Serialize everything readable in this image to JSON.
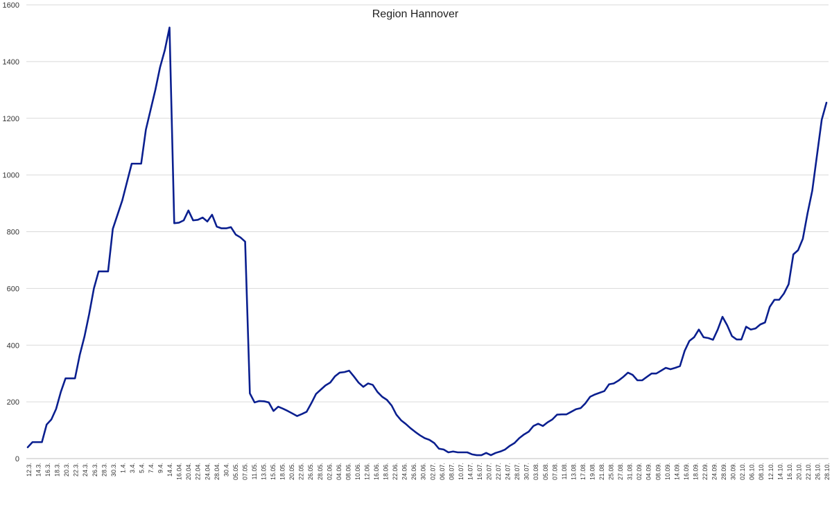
{
  "chart_data": {
    "type": "line",
    "title": "Region Hannover",
    "xlabel": "",
    "ylabel": "",
    "ylim": [
      0,
      1600
    ],
    "yticks": [
      0,
      200,
      400,
      600,
      800,
      1000,
      1200,
      1400,
      1600
    ],
    "grid": true,
    "legend": "none",
    "line_color": "#0a1f8f",
    "x_tick_labels": [
      "12.3.",
      "14.3.",
      "16.3.",
      "18.3.",
      "20.3.",
      "22.3.",
      "24.3.",
      "26.3.",
      "28.3.",
      "30.3.",
      "1.4.",
      "3.4.",
      "5.4.",
      "7.4.",
      "9.4.",
      "14.4.",
      "16.04.",
      "20.04.",
      "22.04.",
      "24.04.",
      "28.04.",
      "30.4.",
      "05.05.",
      "07.05.",
      "11.05.",
      "13.05.",
      "15.05.",
      "18.05.",
      "20.05.",
      "22.05.",
      "26.05.",
      "28.05.",
      "02.06.",
      "04.06.",
      "08.06.",
      "10.06.",
      "12.06.",
      "16.06.",
      "18.06.",
      "22.06.",
      "24.06.",
      "26.06.",
      "30.06.",
      "02.07.",
      "06.07.",
      "08.07.",
      "10.07.",
      "14.07.",
      "16.07.",
      "20.07.",
      "22.07.",
      "24.07.",
      "28.07.",
      "30.07.",
      "03.08.",
      "05.08.",
      "07.08.",
      "11.08.",
      "13.08.",
      "17.08.",
      "19.08.",
      "21.08.",
      "25.08.",
      "27.08.",
      "31.08.",
      "02.09.",
      "04.09.",
      "08.09.",
      "10.09.",
      "14.09.",
      "16.09.",
      "18.09.",
      "22.09.",
      "24.09.",
      "28.09.",
      "30.09.",
      "02.10.",
      "06.10.",
      "08.10.",
      "12.10.",
      "14.10.",
      "16.10.",
      "20.10.",
      "22.10.",
      "26.10.",
      "28.10."
    ],
    "series": [
      {
        "values": [
          40,
          58,
          58,
          58,
          120,
          138,
          175,
          235,
          283,
          283,
          283,
          365,
          430,
          510,
          600,
          660,
          660,
          660,
          810,
          860,
          910,
          975,
          1040,
          1040,
          1040,
          1160,
          1230,
          1300,
          1380,
          1440,
          1520,
          830,
          832,
          840,
          875,
          840,
          842,
          850,
          836,
          860,
          818,
          812,
          812,
          816,
          790,
          780,
          765,
          230,
          198,
          203,
          202,
          198,
          168,
          183,
          176,
          168,
          159,
          150,
          157,
          165,
          195,
          228,
          243,
          258,
          268,
          290,
          303,
          305,
          310,
          290,
          268,
          253,
          265,
          260,
          235,
          218,
          207,
          187,
          155,
          135,
          122,
          107,
          94,
          82,
          72,
          66,
          55,
          35,
          32,
          22,
          25,
          22,
          22,
          22,
          15,
          12,
          12,
          20,
          12,
          20,
          25,
          32,
          45,
          55,
          72,
          85,
          95,
          115,
          123,
          115,
          128,
          138,
          155,
          156,
          156,
          165,
          174,
          178,
          195,
          218,
          226,
          232,
          238,
          262,
          265,
          275,
          288,
          303,
          295,
          276,
          276,
          288,
          300,
          300,
          310,
          320,
          315,
          320,
          326,
          380,
          415,
          428,
          455,
          428,
          425,
          419,
          455,
          500,
          470,
          432,
          420,
          420,
          465,
          455,
          459,
          473,
          480,
          535,
          560,
          560,
          582,
          615,
          720,
          735,
          775,
          865,
          945,
          1070,
          1195,
          1255
        ]
      }
    ]
  }
}
